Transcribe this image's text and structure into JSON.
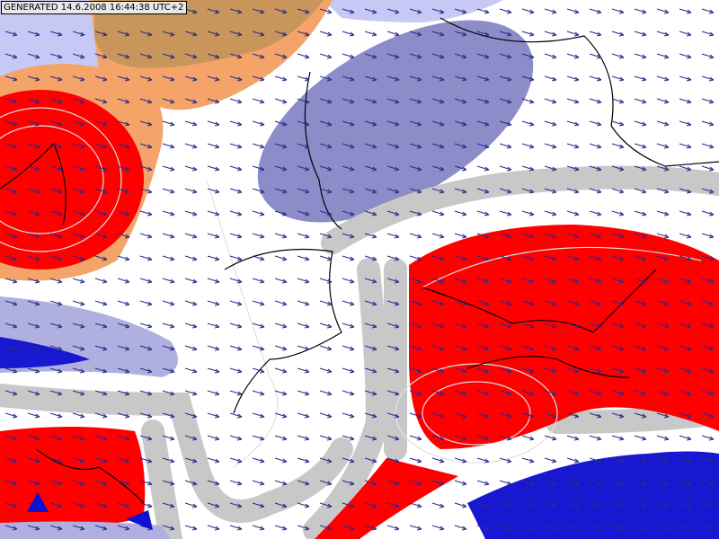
{
  "header": {
    "generated": "GENERATED 14.6.2008 16:44:38 UTC+2"
  }
}
